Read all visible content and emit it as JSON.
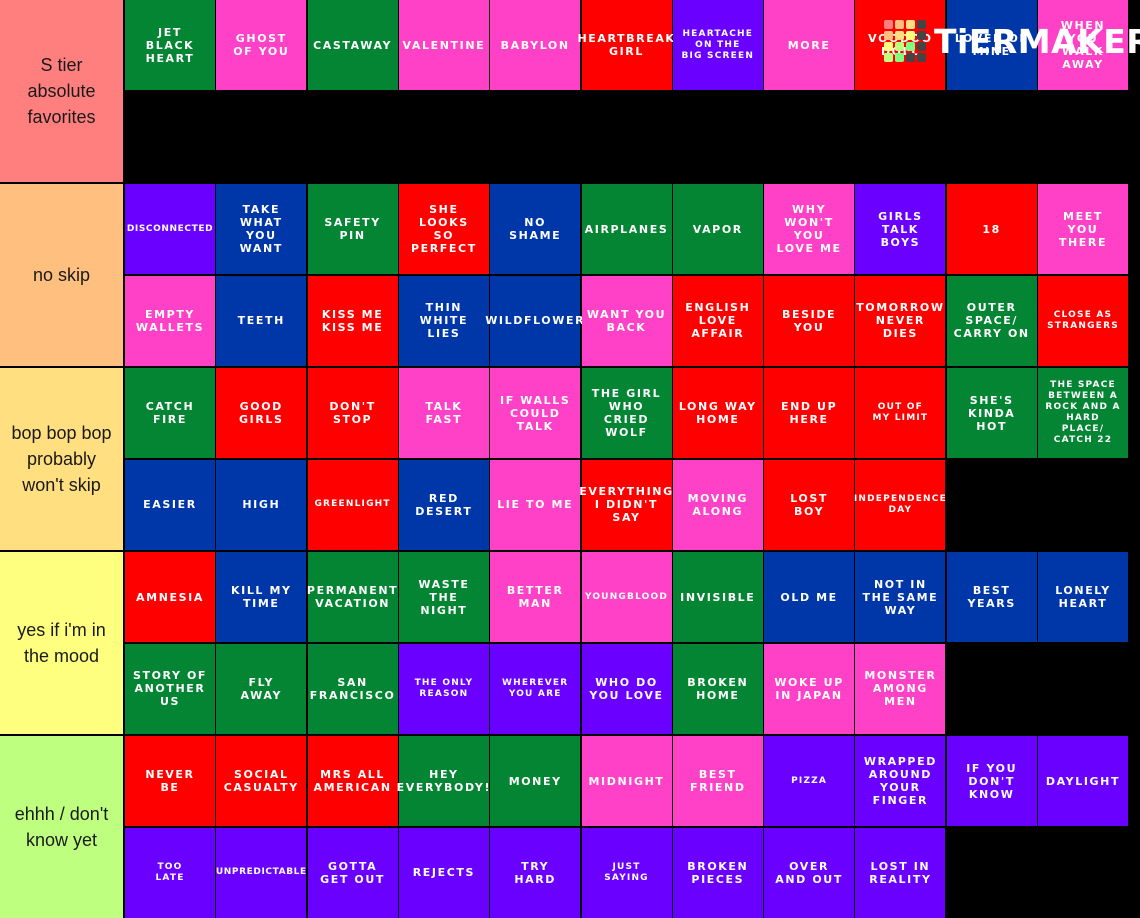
{
  "logo": {
    "text": "TiERMAKER",
    "grid_colors": [
      "#ff7f7f",
      "#ffbf7f",
      "#ffdf7f",
      "#444444",
      "#ffbf7f",
      "#ffdf7f",
      "#ffff7f",
      "#444444",
      "#ffff7f",
      "#bfff7f",
      "#7fff7f",
      "#444444",
      "#bfff7f",
      "#7fff7f",
      "#444444",
      "#444444"
    ]
  },
  "colors": {
    "green": "#048533",
    "pink": "#ff41c8",
    "red": "#ff0000",
    "purple": "#6a00ff",
    "blue": "#0037a8"
  },
  "tiers": [
    {
      "label": "S tier\nabsolute\nfavorites",
      "color": "#ff7f7f",
      "items": [
        {
          "text": "JET\nBLACK\nHEART",
          "color": "green"
        },
        {
          "text": "GHOST\nOF YOU",
          "color": "pink"
        },
        {
          "text": "CASTAWAY",
          "color": "green"
        },
        {
          "text": "VALENTINE",
          "color": "pink"
        },
        {
          "text": "BABYLON",
          "color": "pink"
        },
        {
          "text": "HEARTBREAK\nGIRL",
          "color": "red"
        },
        {
          "text": "HEARTACHE\nON THE\nBIG SCREEN",
          "color": "purple",
          "size": "small"
        },
        {
          "text": "MORE",
          "color": "pink"
        },
        {
          "text": "VOODOO\nDOLL",
          "color": "red"
        },
        {
          "text": "LOVER OF\nMINE",
          "color": "blue"
        },
        {
          "text": "WHEN\nYOU\nWALK\nAWAY",
          "color": "pink"
        }
      ]
    },
    {
      "label": "no skip",
      "color": "#ffbf7f",
      "items": [
        {
          "text": "DISCONNECTED",
          "color": "purple",
          "size": "xsmall"
        },
        {
          "text": "TAKE\nWHAT\nYOU\nWANT",
          "color": "blue"
        },
        {
          "text": "SAFETY\nPIN",
          "color": "green"
        },
        {
          "text": "SHE\nLOOKS\nSO\nPERFECT",
          "color": "red"
        },
        {
          "text": "NO\nSHAME",
          "color": "blue"
        },
        {
          "text": "AIRPLANES",
          "color": "green"
        },
        {
          "text": "VAPOR",
          "color": "green"
        },
        {
          "text": "WHY\nWON'T\nYOU\nLOVE ME",
          "color": "pink"
        },
        {
          "text": "GIRLS\nTALK\nBOYS",
          "color": "purple"
        },
        {
          "text": "18",
          "color": "red"
        },
        {
          "text": "MEET\nYOU\nTHERE",
          "color": "pink"
        },
        {
          "text": "EMPTY\nWALLETS",
          "color": "pink"
        },
        {
          "text": "TEETH",
          "color": "blue"
        },
        {
          "text": "KISS ME\nKISS ME",
          "color": "red"
        },
        {
          "text": "THIN\nWHITE\nLIES",
          "color": "blue"
        },
        {
          "text": "WILDFLOWER",
          "color": "blue"
        },
        {
          "text": "WANT YOU\nBACK",
          "color": "pink"
        },
        {
          "text": "ENGLISH\nLOVE\nAFFAIR",
          "color": "red"
        },
        {
          "text": "BESIDE\nYOU",
          "color": "red"
        },
        {
          "text": "TOMORROW\nNEVER\nDIES",
          "color": "red"
        },
        {
          "text": "OUTER\nSPACE/\nCARRY ON",
          "color": "green"
        },
        {
          "text": "CLOSE AS\nSTRANGERS",
          "color": "red",
          "size": "small"
        }
      ]
    },
    {
      "label": "bop bop bop\nprobably\nwon't skip",
      "color": "#ffdf7f",
      "items": [
        {
          "text": "CATCH\nFIRE",
          "color": "green"
        },
        {
          "text": "GOOD\nGIRLS",
          "color": "red"
        },
        {
          "text": "DON'T\nSTOP",
          "color": "red"
        },
        {
          "text": "TALK\nFAST",
          "color": "pink"
        },
        {
          "text": "IF WALLS\nCOULD\nTALK",
          "color": "pink"
        },
        {
          "text": "THE GIRL\nWHO\nCRIED\nWOLF",
          "color": "green"
        },
        {
          "text": "LONG WAY\nHOME",
          "color": "red"
        },
        {
          "text": "END UP\nHERE",
          "color": "red"
        },
        {
          "text": "OUT OF\nMY LIMIT",
          "color": "red",
          "size": "small"
        },
        {
          "text": "SHE'S\nKINDA\nHOT",
          "color": "green"
        },
        {
          "text": "THE SPACE\nBETWEEN A\nROCK AND A\nHARD\nPLACE/\nCATCH 22",
          "color": "green",
          "size": "small"
        },
        {
          "text": "EASIER",
          "color": "blue"
        },
        {
          "text": "HIGH",
          "color": "blue"
        },
        {
          "text": "GREENLIGHT",
          "color": "red",
          "size": "small"
        },
        {
          "text": "RED\nDESERT",
          "color": "blue"
        },
        {
          "text": "LIE TO ME",
          "color": "pink"
        },
        {
          "text": "EVERYTHING\nI DIDN'T\nSAY",
          "color": "red"
        },
        {
          "text": "MOVING\nALONG",
          "color": "pink"
        },
        {
          "text": "LOST\nBOY",
          "color": "red"
        },
        {
          "text": "INDEPENDENCE\nDAY",
          "color": "red",
          "size": "small"
        }
      ]
    },
    {
      "label": "yes if i'm in\nthe mood",
      "color": "#ffff7f",
      "items": [
        {
          "text": "AMNESIA",
          "color": "red"
        },
        {
          "text": "KILL MY\nTIME",
          "color": "blue"
        },
        {
          "text": "PERMANENT\nVACATION",
          "color": "green"
        },
        {
          "text": "WASTE\nTHE\nNIGHT",
          "color": "green"
        },
        {
          "text": "BETTER\nMAN",
          "color": "pink"
        },
        {
          "text": "YOUNGBLOOD",
          "color": "pink",
          "size": "small"
        },
        {
          "text": "INVISIBLE",
          "color": "green"
        },
        {
          "text": "OLD ME",
          "color": "blue"
        },
        {
          "text": "NOT IN\nTHE SAME\nWAY",
          "color": "blue"
        },
        {
          "text": "BEST\nYEARS",
          "color": "blue"
        },
        {
          "text": "LONELY\nHEART",
          "color": "blue"
        },
        {
          "text": "STORY OF\nANOTHER\nUS",
          "color": "green"
        },
        {
          "text": "FLY\nAWAY",
          "color": "green"
        },
        {
          "text": "SAN\nFRANCISCO",
          "color": "green"
        },
        {
          "text": "THE ONLY\nREASON",
          "color": "purple",
          "size": "small"
        },
        {
          "text": "WHEREVER\nYOU ARE",
          "color": "purple",
          "size": "small"
        },
        {
          "text": "WHO DO\nYOU LOVE",
          "color": "purple"
        },
        {
          "text": "BROKEN\nHOME",
          "color": "green"
        },
        {
          "text": "WOKE UP\nIN JAPAN",
          "color": "pink"
        },
        {
          "text": "MONSTER\nAMONG\nMEN",
          "color": "pink"
        }
      ]
    },
    {
      "label": "ehhh / don't\nknow yet",
      "color": "#bfff7f",
      "items": [
        {
          "text": "NEVER\nBE",
          "color": "red"
        },
        {
          "text": "SOCIAL\nCASUALTY",
          "color": "red"
        },
        {
          "text": "MRS ALL\nAMERICAN",
          "color": "red"
        },
        {
          "text": "HEY\nEVERYBODY!",
          "color": "green"
        },
        {
          "text": "MONEY",
          "color": "green"
        },
        {
          "text": "MIDNIGHT",
          "color": "pink"
        },
        {
          "text": "BEST\nFRIEND",
          "color": "pink"
        },
        {
          "text": "PIZZA",
          "color": "purple",
          "size": "small"
        },
        {
          "text": "WRAPPED\nAROUND\nYOUR\nFINGER",
          "color": "purple"
        },
        {
          "text": "IF YOU\nDON'T\nKNOW",
          "color": "purple"
        },
        {
          "text": "DAYLIGHT",
          "color": "purple"
        },
        {
          "text": "TOO\nLATE",
          "color": "purple",
          "size": "small"
        },
        {
          "text": "UNPREDICTABLE",
          "color": "purple",
          "size": "xsmall"
        },
        {
          "text": "GOTTA\nGET OUT",
          "color": "purple"
        },
        {
          "text": "REJECTS",
          "color": "purple"
        },
        {
          "text": "TRY\nHARD",
          "color": "purple"
        },
        {
          "text": "JUST\nSAYING",
          "color": "purple",
          "size": "small"
        },
        {
          "text": "BROKEN\nPIECES",
          "color": "purple"
        },
        {
          "text": "OVER\nAND OUT",
          "color": "purple"
        },
        {
          "text": "LOST IN\nREALITY",
          "color": "purple"
        }
      ]
    }
  ]
}
